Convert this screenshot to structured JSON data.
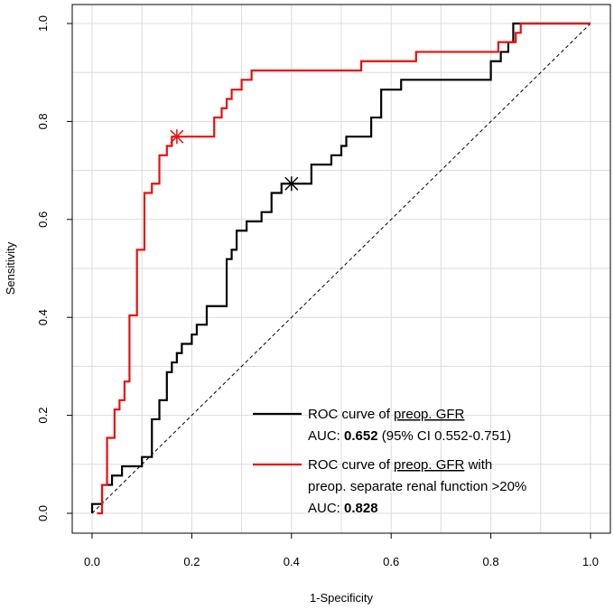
{
  "chart_data": {
    "type": "line",
    "xlabel": "1-Specificity",
    "ylabel": "Sensitivity",
    "xlim": [
      0,
      1
    ],
    "ylim": [
      0,
      1
    ],
    "xticks": [
      "0.0",
      "0.2",
      "0.4",
      "0.6",
      "0.8",
      "1.0"
    ],
    "yticks": [
      "0.0",
      "0.2",
      "0.4",
      "0.6",
      "0.8",
      "1.0"
    ],
    "grid": true,
    "legend_position": "bottom-right",
    "diagonal_reference": true,
    "colors": {
      "black": "#000000",
      "red": "#e8100e",
      "grid": "#dcdcdc"
    },
    "series": [
      {
        "color": "#000000",
        "legend_line1_prefix": "ROC curve of ",
        "legend_line1_underlined": "preop. GFR",
        "legend_line2_prefix": "AUC: ",
        "legend_line2_bold": "0.652",
        "legend_line2_suffix": " (95% CI 0.552-0.751)",
        "cutoff_marker": [
          0.4,
          0.673
        ],
        "points": [
          [
            0,
            0
          ],
          [
            0,
            0.019
          ],
          [
            0.02,
            0.019
          ],
          [
            0.02,
            0.058
          ],
          [
            0.04,
            0.058
          ],
          [
            0.04,
            0.077
          ],
          [
            0.06,
            0.077
          ],
          [
            0.06,
            0.096
          ],
          [
            0.1,
            0.096
          ],
          [
            0.1,
            0.115
          ],
          [
            0.12,
            0.115
          ],
          [
            0.12,
            0.192
          ],
          [
            0.135,
            0.192
          ],
          [
            0.135,
            0.231
          ],
          [
            0.15,
            0.231
          ],
          [
            0.15,
            0.288
          ],
          [
            0.16,
            0.288
          ],
          [
            0.16,
            0.308
          ],
          [
            0.17,
            0.308
          ],
          [
            0.17,
            0.327
          ],
          [
            0.18,
            0.327
          ],
          [
            0.18,
            0.346
          ],
          [
            0.2,
            0.346
          ],
          [
            0.2,
            0.365
          ],
          [
            0.21,
            0.365
          ],
          [
            0.21,
            0.385
          ],
          [
            0.23,
            0.385
          ],
          [
            0.23,
            0.423
          ],
          [
            0.27,
            0.423
          ],
          [
            0.27,
            0.519
          ],
          [
            0.28,
            0.519
          ],
          [
            0.28,
            0.538
          ],
          [
            0.29,
            0.538
          ],
          [
            0.29,
            0.577
          ],
          [
            0.31,
            0.577
          ],
          [
            0.31,
            0.596
          ],
          [
            0.34,
            0.596
          ],
          [
            0.34,
            0.615
          ],
          [
            0.36,
            0.615
          ],
          [
            0.36,
            0.654
          ],
          [
            0.38,
            0.654
          ],
          [
            0.38,
            0.673
          ],
          [
            0.44,
            0.673
          ],
          [
            0.44,
            0.712
          ],
          [
            0.48,
            0.712
          ],
          [
            0.48,
            0.731
          ],
          [
            0.5,
            0.731
          ],
          [
            0.5,
            0.75
          ],
          [
            0.51,
            0.75
          ],
          [
            0.51,
            0.769
          ],
          [
            0.56,
            0.769
          ],
          [
            0.56,
            0.808
          ],
          [
            0.58,
            0.808
          ],
          [
            0.58,
            0.865
          ],
          [
            0.62,
            0.865
          ],
          [
            0.62,
            0.885
          ],
          [
            0.8,
            0.885
          ],
          [
            0.8,
            0.923
          ],
          [
            0.82,
            0.923
          ],
          [
            0.82,
            0.942
          ],
          [
            0.835,
            0.942
          ],
          [
            0.835,
            0.962
          ],
          [
            0.845,
            0.962
          ],
          [
            0.845,
            1.0
          ],
          [
            1.0,
            1.0
          ]
        ]
      },
      {
        "color": "#e8100e",
        "legend_line1_prefix": "ROC curve of ",
        "legend_line1_underlined": "preop. GFR",
        "legend_line1_suffix": " with",
        "legend_line2_prefix": "preop. separate renal function >20%",
        "legend_line3_prefix": "AUC: ",
        "legend_line3_bold": "0.828",
        "cutoff_marker": [
          0.17,
          0.769
        ],
        "points": [
          [
            0.01,
            0
          ],
          [
            0.02,
            0
          ],
          [
            0.02,
            0.058
          ],
          [
            0.03,
            0.058
          ],
          [
            0.03,
            0.154
          ],
          [
            0.045,
            0.154
          ],
          [
            0.045,
            0.212
          ],
          [
            0.055,
            0.212
          ],
          [
            0.055,
            0.231
          ],
          [
            0.065,
            0.231
          ],
          [
            0.065,
            0.269
          ],
          [
            0.075,
            0.269
          ],
          [
            0.075,
            0.404
          ],
          [
            0.09,
            0.404
          ],
          [
            0.09,
            0.538
          ],
          [
            0.105,
            0.538
          ],
          [
            0.105,
            0.654
          ],
          [
            0.12,
            0.654
          ],
          [
            0.12,
            0.673
          ],
          [
            0.135,
            0.673
          ],
          [
            0.135,
            0.731
          ],
          [
            0.15,
            0.731
          ],
          [
            0.15,
            0.75
          ],
          [
            0.16,
            0.75
          ],
          [
            0.16,
            0.769
          ],
          [
            0.245,
            0.769
          ],
          [
            0.245,
            0.808
          ],
          [
            0.26,
            0.808
          ],
          [
            0.26,
            0.827
          ],
          [
            0.27,
            0.827
          ],
          [
            0.27,
            0.846
          ],
          [
            0.28,
            0.846
          ],
          [
            0.28,
            0.865
          ],
          [
            0.3,
            0.865
          ],
          [
            0.3,
            0.885
          ],
          [
            0.32,
            0.885
          ],
          [
            0.32,
            0.904
          ],
          [
            0.54,
            0.904
          ],
          [
            0.54,
            0.923
          ],
          [
            0.65,
            0.923
          ],
          [
            0.65,
            0.942
          ],
          [
            0.815,
            0.942
          ],
          [
            0.815,
            0.962
          ],
          [
            0.85,
            0.962
          ],
          [
            0.85,
            0.981
          ],
          [
            0.86,
            0.981
          ],
          [
            0.86,
            1.0
          ],
          [
            1.0,
            1.0
          ]
        ]
      }
    ]
  }
}
